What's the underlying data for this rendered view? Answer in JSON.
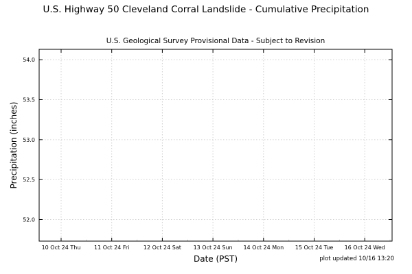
{
  "chart_data": {
    "type": "line",
    "title": "U.S. Highway 50 Cleveland Corral Landslide - Cumulative Precipitation",
    "subtitle": "U.S. Geological Survey Provisional Data - Subject to Revision",
    "xlabel": "Date (PST)",
    "ylabel": "Precipitation (inches)",
    "x_ticks": [
      "10 Oct 24 Thu",
      "11 Oct 24 Fri",
      "12 Oct 24 Sat",
      "13 Oct 24 Sun",
      "14 Oct 24 Mon",
      "15 Oct 24 Tue",
      "16 Oct 24 Wed"
    ],
    "y_ticks": [
      "52.0",
      "52.5",
      "53.0",
      "53.5",
      "54.0"
    ],
    "ylim": [
      51.73,
      54.13
    ],
    "grid": true,
    "series": [],
    "footer": "plot updated 10/16 13:20"
  }
}
